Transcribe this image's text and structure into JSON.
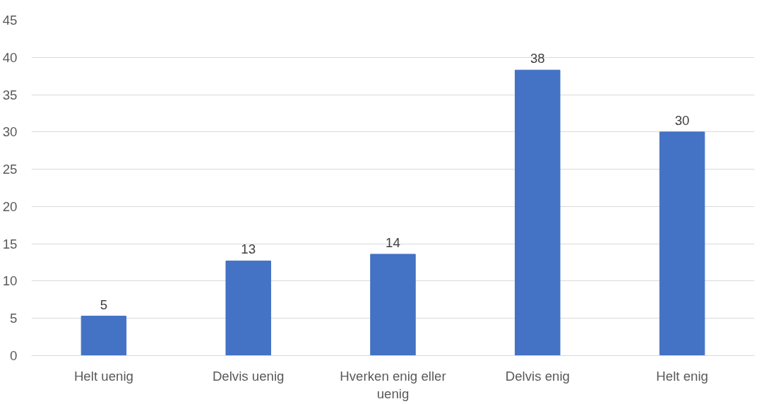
{
  "chart_data": {
    "type": "bar",
    "categories": [
      "Helt uenig",
      "Delvis uenig",
      "Hverken enig eller uenig",
      "Delvis enig",
      "Helt enig"
    ],
    "values": [
      5.3,
      12.7,
      13.6,
      38.3,
      30.0
    ],
    "value_labels": [
      "5",
      "13",
      "14",
      "38",
      "30"
    ],
    "color": "#4472c4",
    "ylim": [
      0,
      45
    ],
    "yticks": [
      0,
      5,
      10,
      15,
      20,
      25,
      30,
      35,
      40,
      45
    ],
    "grid": "y"
  }
}
